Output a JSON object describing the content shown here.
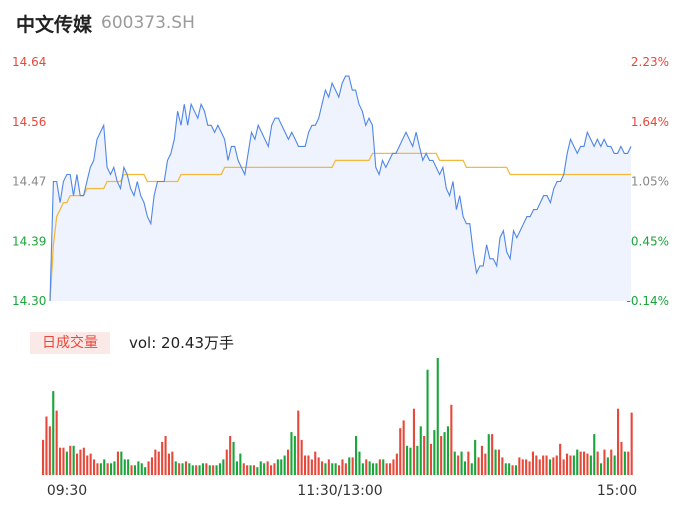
{
  "header": {
    "stock_name": "中文传媒",
    "stock_code": "600373.SH"
  },
  "volume_panel": {
    "badge_label": "日成交量",
    "volume_text": "vol: 20.43万手"
  },
  "colors": {
    "price_line": "#4f86e8",
    "avg_line": "#f3b93d",
    "up": "#e8483a",
    "down": "#1aa53b",
    "neutral": "#888888",
    "area_fill": "#eef3fd"
  },
  "chart_data": [
    {
      "type": "line",
      "title": "",
      "ylim": [
        14.3,
        14.64
      ],
      "y_ticks_left": [
        "14.64",
        "14.56",
        "14.47",
        "14.39",
        "14.30"
      ],
      "y_ticks_right": [
        "2.23%",
        "1.64%",
        "1.05%",
        "0.45%",
        "-0.14%"
      ],
      "x_ticks": [
        "09:30",
        "11:30/13:00",
        "15:00"
      ],
      "series": [
        {
          "values": [
            14.3,
            14.47,
            14.47,
            14.44,
            14.47,
            14.48,
            14.48,
            14.45,
            14.48,
            14.45,
            14.45,
            14.47,
            14.49,
            14.5,
            14.53,
            14.54,
            14.55,
            14.49,
            14.48,
            14.49,
            14.47,
            14.46,
            14.49,
            14.48,
            14.46,
            14.45,
            14.47,
            14.45,
            14.44,
            14.42,
            14.41,
            14.45,
            14.47,
            14.47,
            14.47,
            14.5,
            14.51,
            14.53,
            14.57,
            14.55,
            14.58,
            14.55,
            14.58,
            14.57,
            14.56,
            14.58,
            14.57,
            14.55,
            14.55,
            14.54,
            14.55,
            14.54,
            14.53,
            14.5,
            14.52,
            14.52,
            14.5,
            14.49,
            14.48,
            14.51,
            14.54,
            14.53,
            14.55,
            14.54,
            14.53,
            14.52,
            14.55,
            14.56,
            14.56,
            14.55,
            14.54,
            14.53,
            14.54,
            14.53,
            14.52,
            14.52,
            14.52,
            14.54,
            14.55,
            14.55,
            14.56,
            14.58,
            14.6,
            14.59,
            14.61,
            14.6,
            14.59,
            14.61,
            14.62,
            14.62,
            14.6,
            14.6,
            14.58,
            14.57,
            14.55,
            14.56,
            14.55,
            14.49,
            14.48,
            14.5,
            14.49,
            14.5,
            14.51,
            14.51,
            14.52,
            14.53,
            14.54,
            14.53,
            14.52,
            14.54,
            14.52,
            14.5,
            14.51,
            14.5,
            14.5,
            14.49,
            14.48,
            14.49,
            14.46,
            14.45,
            14.47,
            14.43,
            14.45,
            14.42,
            14.41,
            14.41,
            14.37,
            14.34,
            14.35,
            14.35,
            14.38,
            14.36,
            14.36,
            14.35,
            14.39,
            14.4,
            14.37,
            14.36,
            14.4,
            14.39,
            14.4,
            14.41,
            14.42,
            14.42,
            14.43,
            14.43,
            14.44,
            14.45,
            14.45,
            14.44,
            14.46,
            14.47,
            14.47,
            14.48,
            14.51,
            14.53,
            14.52,
            14.51,
            14.52,
            14.52,
            14.54,
            14.53,
            14.52,
            14.53,
            14.52,
            14.53,
            14.52,
            14.52,
            14.51,
            14.51,
            14.52,
            14.51,
            14.51,
            14.52
          ]
        },
        {
          "values": [
            14.3,
            14.38,
            14.42,
            14.43,
            14.44,
            14.44,
            14.45,
            14.45,
            14.45,
            14.45,
            14.45,
            14.46,
            14.46,
            14.46,
            14.46,
            14.46,
            14.46,
            14.47,
            14.47,
            14.47,
            14.47,
            14.47,
            14.48,
            14.48,
            14.48,
            14.48,
            14.48,
            14.48,
            14.48,
            14.47,
            14.47,
            14.47,
            14.47,
            14.47,
            14.47,
            14.47,
            14.47,
            14.47,
            14.47,
            14.48,
            14.48,
            14.48,
            14.48,
            14.48,
            14.48,
            14.48,
            14.48,
            14.48,
            14.48,
            14.48,
            14.48,
            14.48,
            14.49,
            14.49,
            14.49,
            14.49,
            14.49,
            14.49,
            14.49,
            14.49,
            14.49,
            14.49,
            14.49,
            14.49,
            14.49,
            14.49,
            14.49,
            14.49,
            14.49,
            14.49,
            14.49,
            14.49,
            14.49,
            14.49,
            14.49,
            14.49,
            14.49,
            14.49,
            14.49,
            14.49,
            14.49,
            14.49,
            14.49,
            14.49,
            14.49,
            14.5,
            14.5,
            14.5,
            14.5,
            14.5,
            14.5,
            14.5,
            14.5,
            14.5,
            14.5,
            14.5,
            14.51,
            14.51,
            14.51,
            14.51,
            14.51,
            14.51,
            14.51,
            14.51,
            14.51,
            14.51,
            14.51,
            14.51,
            14.51,
            14.51,
            14.51,
            14.51,
            14.51,
            14.51,
            14.51,
            14.51,
            14.5,
            14.5,
            14.5,
            14.5,
            14.5,
            14.5,
            14.5,
            14.5,
            14.49,
            14.49,
            14.49,
            14.49,
            14.49,
            14.49,
            14.49,
            14.49,
            14.49,
            14.49,
            14.49,
            14.49,
            14.49,
            14.48,
            14.48,
            14.48,
            14.48,
            14.48,
            14.48,
            14.48,
            14.48,
            14.48,
            14.48,
            14.48,
            14.48,
            14.48,
            14.48,
            14.48,
            14.48,
            14.48,
            14.48,
            14.48,
            14.48,
            14.48,
            14.48,
            14.48,
            14.48,
            14.48,
            14.48,
            14.48,
            14.48,
            14.48,
            14.48,
            14.48,
            14.48,
            14.48,
            14.48,
            14.48,
            14.48,
            14.48
          ]
        }
      ]
    },
    {
      "type": "bar",
      "title": "",
      "series": [
        {
          "values": [
            18,
            30,
            25,
            43,
            33,
            14,
            14,
            12,
            15,
            15,
            11,
            13,
            14,
            10,
            11,
            8,
            6,
            6,
            8,
            6,
            6,
            7,
            12,
            12,
            8,
            8,
            5,
            5,
            7,
            6,
            4,
            7,
            9,
            13,
            12,
            17,
            20,
            11,
            12,
            7,
            6,
            6,
            7,
            6,
            5,
            5,
            5,
            6,
            6,
            5,
            5,
            5,
            6,
            8,
            13,
            20,
            17,
            7,
            11,
            6,
            5,
            5,
            5,
            4,
            7,
            6,
            7,
            5,
            6,
            8,
            8,
            10,
            13,
            22,
            20,
            33,
            18,
            10,
            10,
            8,
            12,
            9,
            7,
            6,
            8,
            6,
            6,
            5,
            8,
            6,
            9,
            9,
            20,
            12,
            6,
            8,
            7,
            6,
            6,
            8,
            8,
            6,
            6,
            8,
            11,
            24,
            28,
            15,
            14,
            34,
            15,
            25,
            20,
            54,
            16,
            23,
            60,
            20,
            22,
            25,
            36,
            12,
            10,
            12,
            7,
            12,
            6,
            18,
            9,
            15,
            11,
            21,
            21,
            13,
            13,
            9,
            6,
            6,
            5,
            5,
            9,
            8,
            8,
            7,
            12,
            10,
            8,
            10,
            10,
            8,
            9,
            10,
            16,
            8,
            11,
            10,
            10,
            13,
            12,
            12,
            11,
            10,
            21,
            12,
            6,
            13,
            9,
            13,
            10,
            34,
            17,
            12,
            12,
            32
          ]
        }
      ]
    }
  ]
}
